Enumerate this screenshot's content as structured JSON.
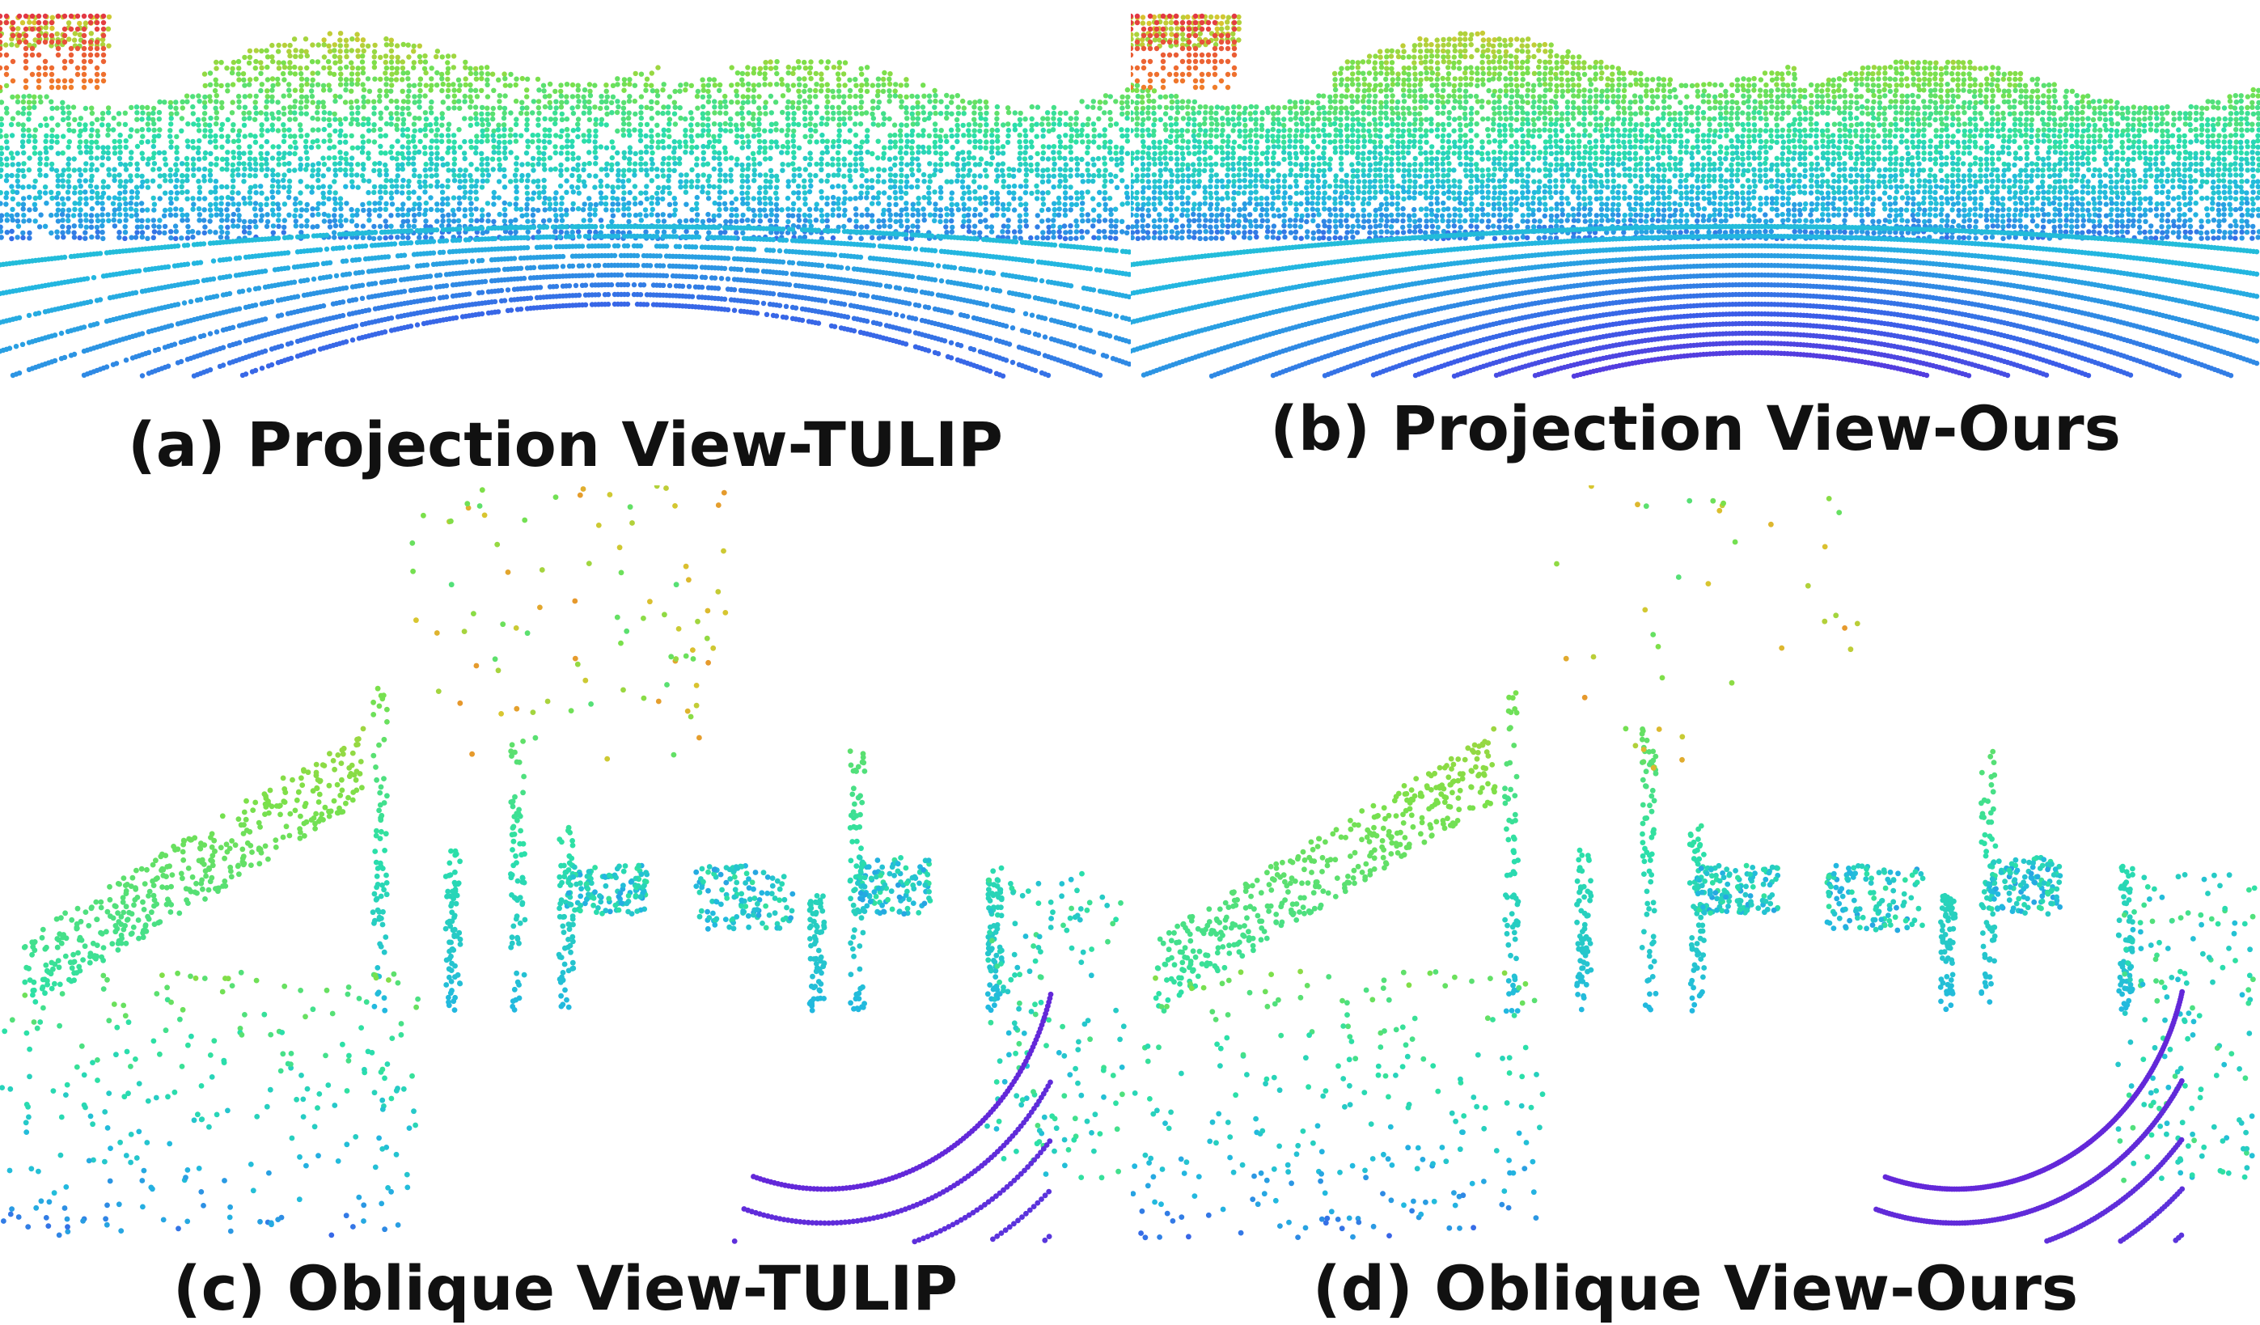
{
  "figure": {
    "panels": [
      {
        "id": "a",
        "caption": "(a) Projection View-TULIP",
        "view": "projection",
        "method": "TULIP"
      },
      {
        "id": "b",
        "caption": "(b) Projection View-Ours",
        "view": "projection",
        "method": "Ours"
      },
      {
        "id": "c",
        "caption": "(c) Oblique View-TULIP",
        "view": "oblique",
        "method": "TULIP"
      },
      {
        "id": "d",
        "caption": "(d) Oblique View-Ours",
        "view": "oblique",
        "method": "Ours"
      }
    ],
    "colormap": [
      "#6a1fd6",
      "#3a5ee8",
      "#22b8e0",
      "#2be0a8",
      "#7be04a",
      "#d8c630",
      "#f07a2a",
      "#e0284a"
    ]
  }
}
